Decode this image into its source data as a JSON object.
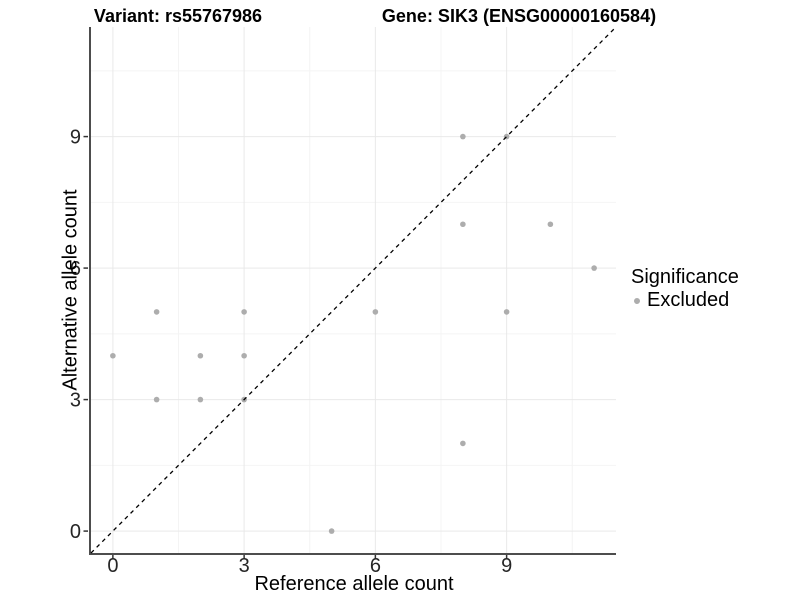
{
  "header": {
    "variant_title": "Variant: rs55767986",
    "gene_title": "Gene: SIK3 (ENSG00000160584)"
  },
  "legend": {
    "title": "Significance",
    "position": "right",
    "items": [
      {
        "label": "Excluded",
        "color": "#ADADAD",
        "marker": "circle"
      }
    ]
  },
  "chart_data": {
    "type": "scatter",
    "xlabel": "Reference allele count",
    "ylabel": "Alternative allele count",
    "xlim": [
      -0.5,
      11.5
    ],
    "ylim": [
      -0.5,
      11.5
    ],
    "x_ticks": [
      0,
      3,
      6,
      9
    ],
    "y_ticks": [
      0,
      3,
      6,
      9
    ],
    "x_minor_ticks": [
      1.5,
      4.5,
      7.5,
      10.5
    ],
    "y_minor_ticks": [
      1.5,
      4.5,
      7.5,
      10.5
    ],
    "grid": true,
    "legend_position": "right",
    "series": [
      {
        "name": "Excluded",
        "color": "#ADADAD",
        "marker_radius": 2.8,
        "points": [
          {
            "x": 0,
            "y": 4
          },
          {
            "x": 1,
            "y": 3
          },
          {
            "x": 1,
            "y": 5
          },
          {
            "x": 2,
            "y": 3
          },
          {
            "x": 2,
            "y": 4
          },
          {
            "x": 3,
            "y": 3
          },
          {
            "x": 3,
            "y": 4
          },
          {
            "x": 3,
            "y": 5
          },
          {
            "x": 5,
            "y": 0
          },
          {
            "x": 6,
            "y": 5
          },
          {
            "x": 8,
            "y": 2
          },
          {
            "x": 8,
            "y": 7
          },
          {
            "x": 8,
            "y": 9
          },
          {
            "x": 9,
            "y": 5
          },
          {
            "x": 9,
            "y": 9
          },
          {
            "x": 10,
            "y": 7
          },
          {
            "x": 11,
            "y": 6
          }
        ]
      }
    ],
    "identity_line": {
      "slope": 1,
      "intercept": 0,
      "style": "dashed",
      "color": "#000000"
    },
    "colors": {
      "background": "#FFFFFF",
      "grid_major": "#E9E9E9",
      "grid_minor": "#F4F4F4",
      "axis_line": "#4D4D4D",
      "tick_mark": "#333333",
      "tick_label": "#262626",
      "point": "#ADADAD",
      "identity_line": "#000000"
    }
  }
}
